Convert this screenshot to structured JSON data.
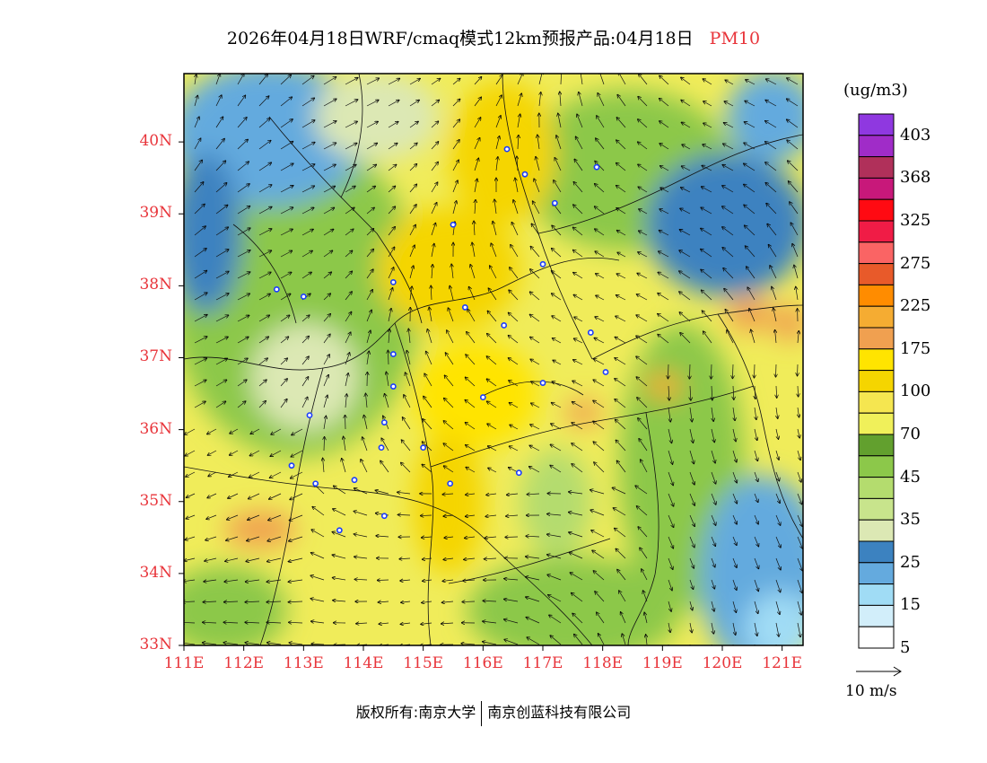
{
  "title": {
    "main": "2026年04月18日WRF/cmaq模式12km预报产品:04月18日",
    "pollutant": "PM10"
  },
  "colorbar": {
    "unit": "(ug/m3)",
    "labels": [
      "403",
      "368",
      "325",
      "275",
      "225",
      "175",
      "100",
      "70",
      "45",
      "35",
      "25",
      "15",
      "5"
    ],
    "colors": [
      "#8f38e0",
      "#a02cc8",
      "#b0305a",
      "#c8187a",
      "#ff0a12",
      "#f01c46",
      "#fa6464",
      "#e85a2a",
      "#ff8c00",
      "#f5ac32",
      "#f0a050",
      "#ffe400",
      "#f5d500",
      "#f5e650",
      "#f0f05a",
      "#62a02e",
      "#8cc84a",
      "#b4dc6e",
      "#c8e48c",
      "#dce8b4",
      "#3c82c0",
      "#64aade",
      "#a0dcf5",
      "#d2eefa",
      "#ffffff"
    ]
  },
  "axes": {
    "lat_labels": [
      "40N",
      "39N",
      "38N",
      "37N",
      "36N",
      "35N",
      "34N",
      "33N"
    ],
    "lon_labels": [
      "111E",
      "112E",
      "113E",
      "114E",
      "115E",
      "116E",
      "117E",
      "118E",
      "119E",
      "120E",
      "121E"
    ],
    "lat_range": [
      33,
      40.95
    ],
    "lon_range": [
      111,
      121.35
    ]
  },
  "wind": {
    "reference_label": "10 m/s"
  },
  "copyright": {
    "owner_prefix": "版权所有:",
    "org1": "南京大学",
    "org2": "南京创蓝科技有限公司"
  },
  "colors": {
    "axis_label": "#e8343a",
    "station": "#1a3cff"
  },
  "stations": [
    {
      "lon": 116.4,
      "lat": 39.9
    },
    {
      "lon": 116.7,
      "lat": 39.55
    },
    {
      "lon": 117.2,
      "lat": 39.15
    },
    {
      "lon": 117.9,
      "lat": 39.65
    },
    {
      "lon": 115.5,
      "lat": 38.85
    },
    {
      "lon": 117.0,
      "lat": 38.3
    },
    {
      "lon": 114.5,
      "lat": 38.05
    },
    {
      "lon": 115.7,
      "lat": 37.7
    },
    {
      "lon": 116.35,
      "lat": 37.45
    },
    {
      "lon": 112.55,
      "lat": 37.95
    },
    {
      "lon": 113.0,
      "lat": 37.85
    },
    {
      "lon": 114.5,
      "lat": 37.05
    },
    {
      "lon": 114.5,
      "lat": 36.6
    },
    {
      "lon": 116.0,
      "lat": 36.45
    },
    {
      "lon": 117.0,
      "lat": 36.65
    },
    {
      "lon": 117.8,
      "lat": 37.35
    },
    {
      "lon": 118.05,
      "lat": 36.8
    },
    {
      "lon": 113.1,
      "lat": 36.2
    },
    {
      "lon": 114.35,
      "lat": 36.1
    },
    {
      "lon": 114.3,
      "lat": 35.75
    },
    {
      "lon": 115.0,
      "lat": 35.75
    },
    {
      "lon": 116.6,
      "lat": 35.4
    },
    {
      "lon": 112.8,
      "lat": 35.5
    },
    {
      "lon": 113.2,
      "lat": 35.25
    },
    {
      "lon": 113.85,
      "lat": 35.3
    },
    {
      "lon": 115.45,
      "lat": 35.25
    },
    {
      "lon": 114.35,
      "lat": 34.8
    },
    {
      "lon": 113.6,
      "lat": 34.6
    }
  ]
}
